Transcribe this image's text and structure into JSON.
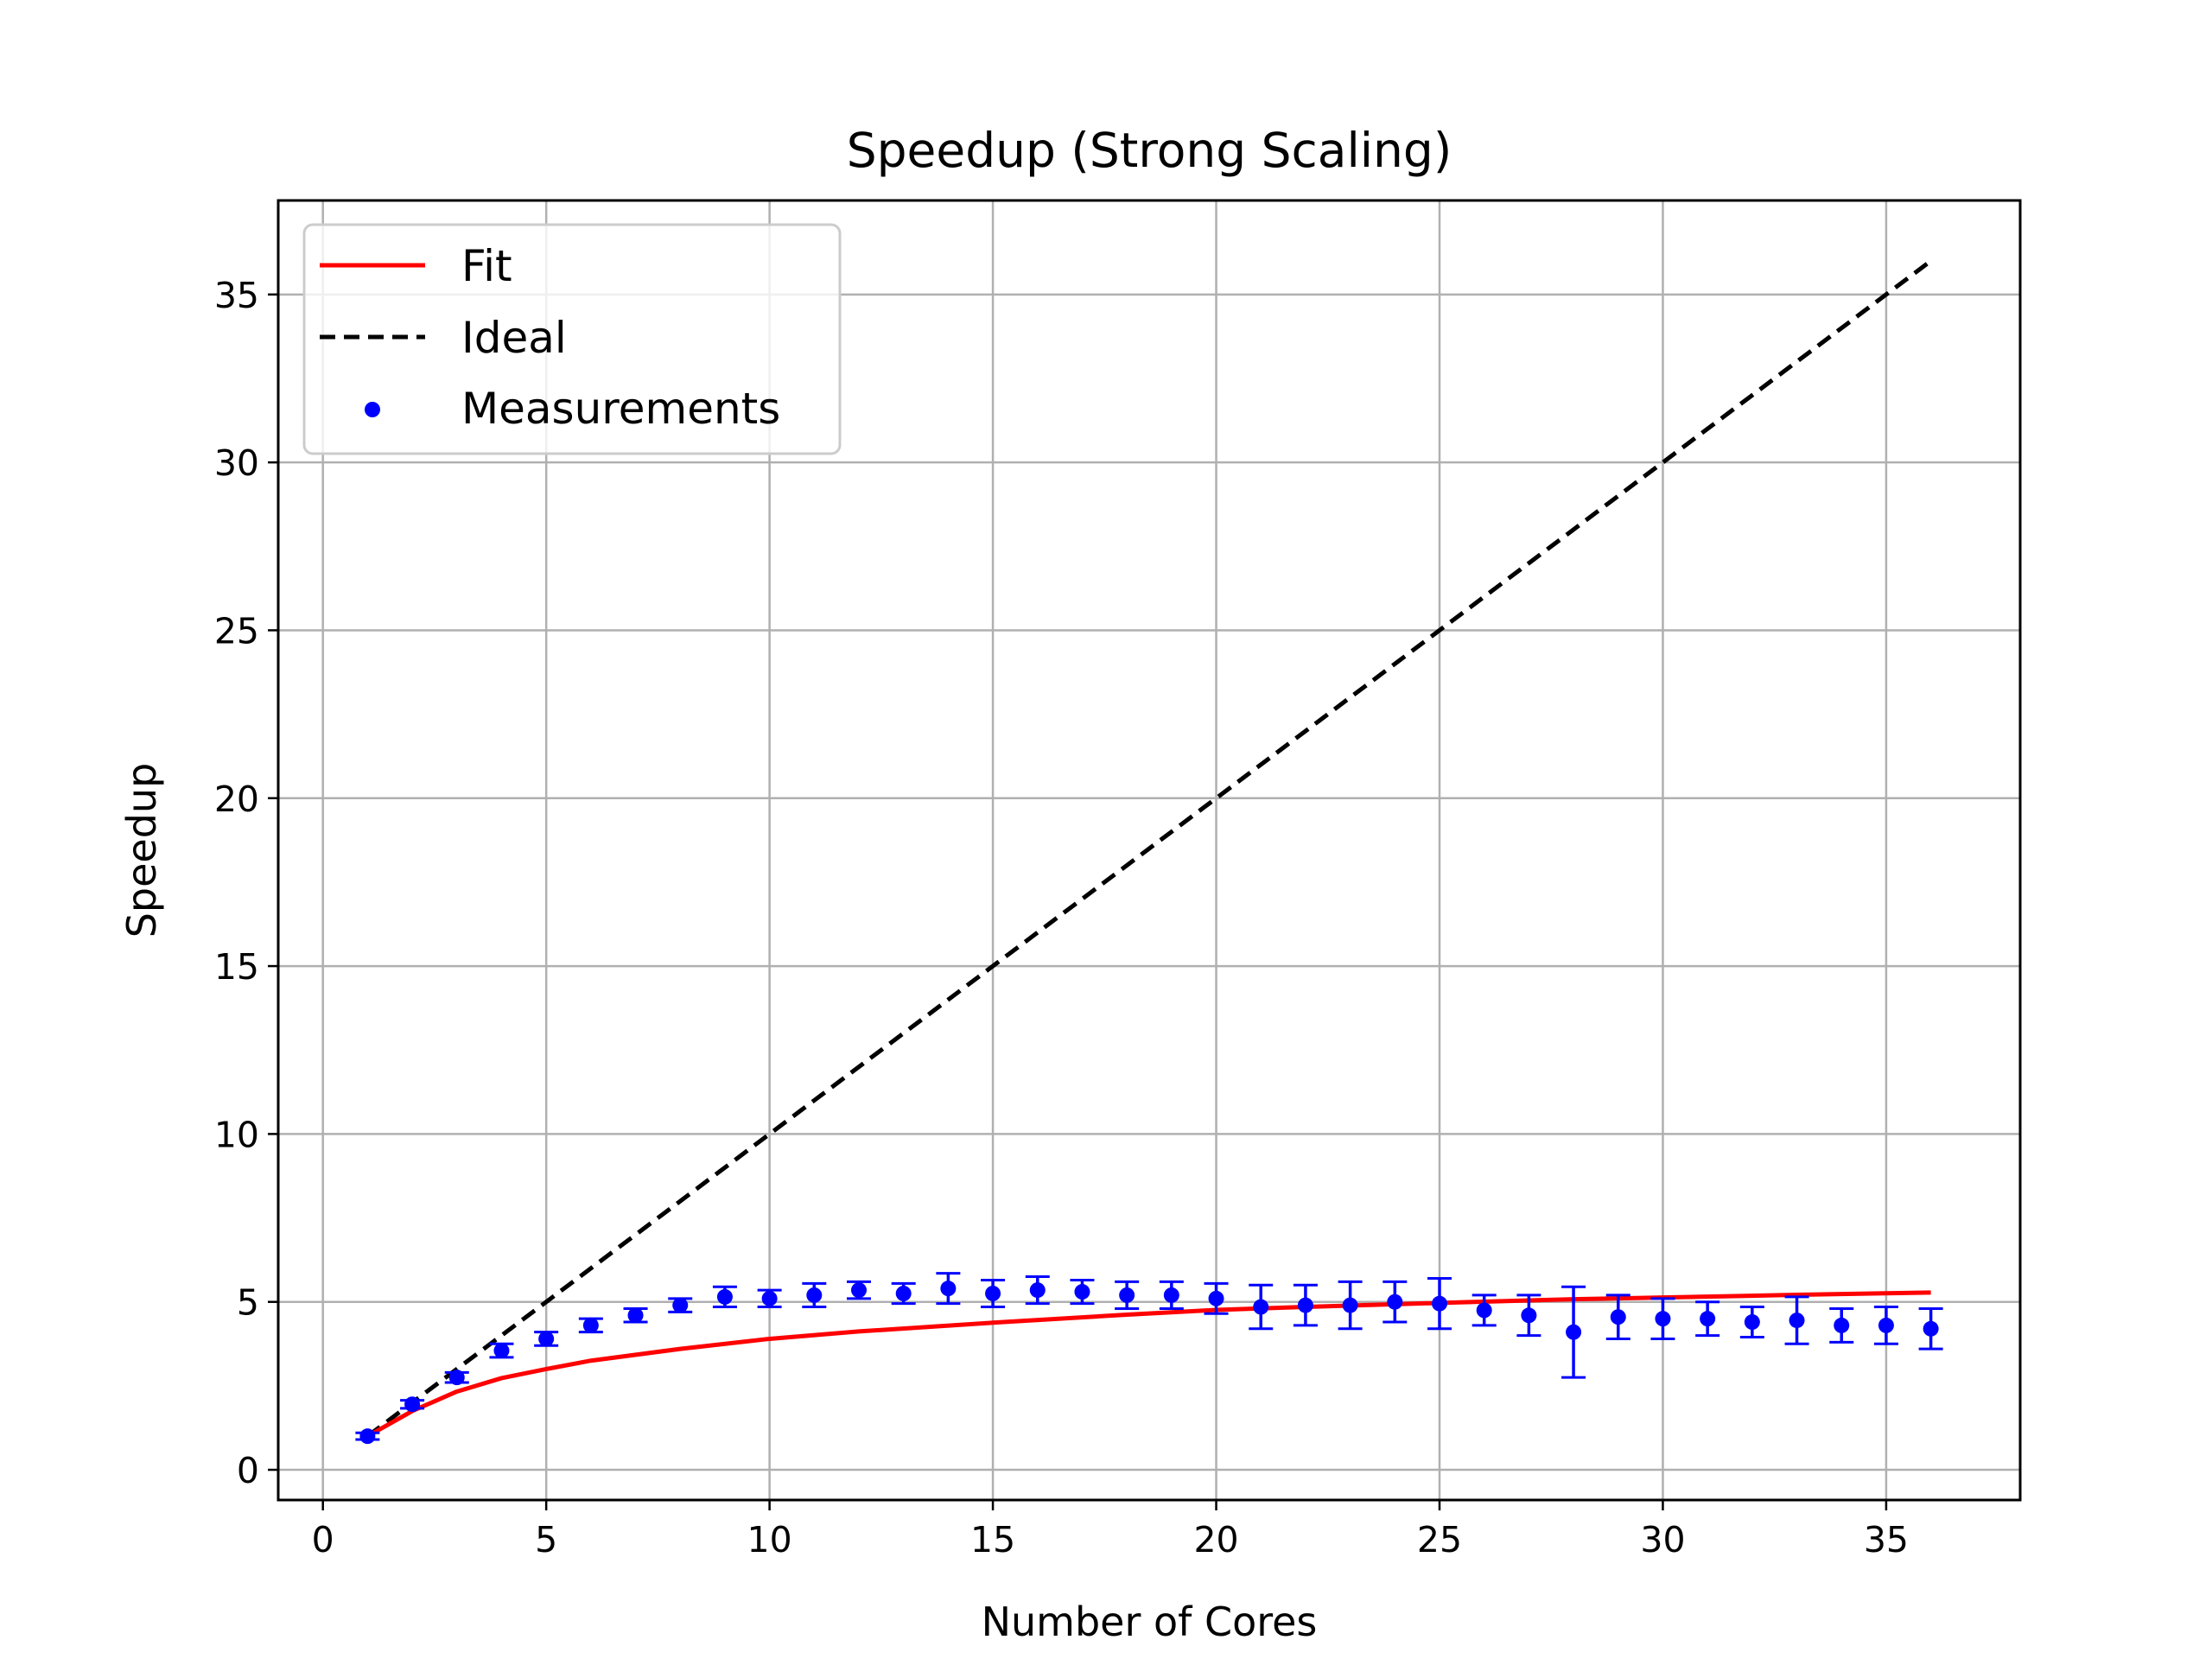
{
  "chart_data": {
    "type": "line",
    "title": "Speedup (Strong Scaling)",
    "xlabel": "Number of Cores",
    "ylabel": "Speedup",
    "xlim": [
      -1,
      38
    ],
    "ylim": [
      -0.9,
      37.8
    ],
    "xticks": [
      0,
      5,
      10,
      15,
      20,
      25,
      30,
      35
    ],
    "yticks": [
      0,
      5,
      10,
      15,
      20,
      25,
      30,
      35
    ],
    "grid": true,
    "legend_position": "top-left",
    "colors": {
      "fit": "#ff0000",
      "ideal": "#000000",
      "measurements": "#0000ff",
      "grid": "#b0b0b0"
    },
    "series": [
      {
        "name": "Fit",
        "style": "solid",
        "x": [
          1,
          2,
          3,
          4,
          5,
          6,
          8,
          10,
          12,
          15,
          18,
          20,
          22,
          25,
          28,
          30,
          33,
          36
        ],
        "y": [
          1.0,
          1.75,
          2.33,
          2.73,
          3.0,
          3.25,
          3.6,
          3.9,
          4.12,
          4.38,
          4.62,
          4.76,
          4.85,
          4.97,
          5.08,
          5.13,
          5.21,
          5.28
        ]
      },
      {
        "name": "Ideal",
        "style": "dashed",
        "x": [
          1,
          36
        ],
        "y": [
          1,
          36
        ]
      },
      {
        "name": "Measurements",
        "style": "scatter",
        "x": [
          1,
          2,
          3,
          4,
          5,
          6,
          7,
          8,
          9,
          10,
          11,
          12,
          13,
          14,
          15,
          16,
          17,
          18,
          19,
          20,
          21,
          22,
          23,
          24,
          25,
          26,
          27,
          28,
          29,
          30,
          31,
          32,
          33,
          34,
          35,
          36
        ],
        "y": [
          1.0,
          1.95,
          2.75,
          3.55,
          3.9,
          4.3,
          4.6,
          4.9,
          5.15,
          5.1,
          5.2,
          5.35,
          5.25,
          5.4,
          5.25,
          5.35,
          5.3,
          5.2,
          5.2,
          5.1,
          4.85,
          4.9,
          4.9,
          5.0,
          4.95,
          4.75,
          4.6,
          4.1,
          4.55,
          4.5,
          4.5,
          4.4,
          4.45,
          4.3,
          4.3,
          4.2
        ],
        "error": [
          0.1,
          0.12,
          0.15,
          0.2,
          0.2,
          0.2,
          0.2,
          0.2,
          0.3,
          0.25,
          0.35,
          0.25,
          0.3,
          0.45,
          0.4,
          0.4,
          0.35,
          0.4,
          0.4,
          0.45,
          0.65,
          0.6,
          0.7,
          0.6,
          0.75,
          0.45,
          0.6,
          1.35,
          0.65,
          0.6,
          0.5,
          0.45,
          0.7,
          0.5,
          0.55,
          0.6
        ]
      }
    ]
  }
}
